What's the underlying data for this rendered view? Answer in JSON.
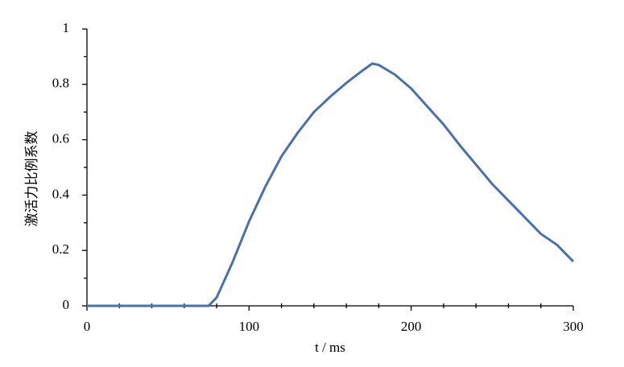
{
  "chart_data": {
    "type": "line",
    "xlabel": "t / ms",
    "ylabel": "激活力比例系数",
    "x": [
      0,
      75,
      80,
      90,
      100,
      110,
      120,
      130,
      140,
      150,
      160,
      170,
      176,
      180,
      190,
      200,
      210,
      220,
      230,
      240,
      250,
      260,
      270,
      280,
      290,
      300
    ],
    "series": [
      {
        "color": "#4a70b0",
        "values": [
          0,
          0,
          0.03,
          0.16,
          0.305,
          0.43,
          0.54,
          0.625,
          0.7,
          0.755,
          0.805,
          0.85,
          0.875,
          0.87,
          0.835,
          0.785,
          0.72,
          0.655,
          0.58,
          0.51,
          0.44,
          0.38,
          0.32,
          0.26,
          0.22,
          0.16
        ]
      }
    ],
    "xlim": [
      0,
      300
    ],
    "xticks": [
      0,
      100,
      200,
      300
    ],
    "xminorticks": [
      20,
      40,
      60,
      80,
      120,
      140,
      160,
      180,
      220,
      240,
      260,
      280
    ],
    "ylim": [
      0,
      1
    ],
    "yticks": [
      0,
      0.2,
      0.4,
      0.6,
      0.8,
      1
    ],
    "yminorticks": [
      0.1,
      0.3,
      0.5,
      0.7,
      0.9
    ]
  }
}
